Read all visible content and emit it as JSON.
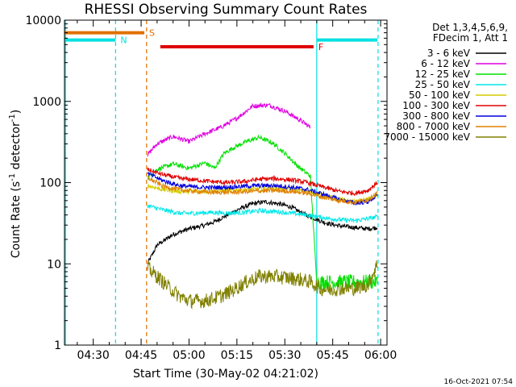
{
  "chart_data": {
    "type": "line",
    "title": "RHESSI Observing Summary Count Rates",
    "xlabel": "Start Time (30-May-02 04:21:02)",
    "ylabel_main": "Count Rate (s",
    "ylabel_sup1": "-1",
    "ylabel_mid": " detector",
    "ylabel_sup2": "-1",
    "ylabel_end": ")",
    "timestamp": "16-Oct-2021 07:54",
    "y_scale": "log",
    "ylim": [
      1,
      10000
    ],
    "xlim_minutes": [
      261,
      362
    ],
    "y_ticks": [
      {
        "value": 1,
        "label": "1"
      },
      {
        "value": 10,
        "label": "10"
      },
      {
        "value": 100,
        "label": "100"
      },
      {
        "value": 1000,
        "label": "1000"
      },
      {
        "value": 10000,
        "label": "10000"
      }
    ],
    "x_ticks": [
      {
        "minute": 270,
        "label": "04:30"
      },
      {
        "minute": 285,
        "label": "04:45"
      },
      {
        "minute": 300,
        "label": "05:00"
      },
      {
        "minute": 315,
        "label": "05:15"
      },
      {
        "minute": 330,
        "label": "05:30"
      },
      {
        "minute": 345,
        "label": "05:45"
      },
      {
        "minute": 360,
        "label": "06:00"
      }
    ],
    "legend_header": [
      "Det 1,3,4,5,6,9,",
      "FDecim 1, Att 1"
    ],
    "legend_placement": "right",
    "data_start_minute": 287,
    "data_end_minute": 359,
    "series": [
      {
        "name": "3 - 6 keV",
        "color": "#000000",
        "x": [
          287,
          290,
          295,
          300,
          305,
          308,
          312,
          316,
          320,
          324,
          328,
          332,
          335,
          338,
          341,
          344,
          348,
          352,
          356,
          359
        ],
        "y": [
          10,
          17,
          23,
          27,
          30,
          33,
          40,
          48,
          55,
          58,
          55,
          50,
          43,
          38,
          34,
          31,
          29,
          28,
          27,
          28
        ]
      },
      {
        "name": "6 - 12 keV",
        "color": "#e000e0",
        "x": [
          287,
          290,
          295,
          300,
          305,
          310,
          315,
          320,
          325,
          330,
          335,
          338
        ],
        "y": [
          220,
          300,
          370,
          320,
          400,
          480,
          620,
          880,
          900,
          760,
          580,
          480
        ]
      },
      {
        "name": "12 - 25 keV",
        "color": "#00e000",
        "x": [
          287,
          290,
          295,
          300,
          305,
          308,
          311,
          314,
          318,
          322,
          326,
          330,
          334,
          338,
          340,
          344,
          348,
          352,
          356,
          359
        ],
        "y": [
          115,
          145,
          170,
          150,
          175,
          150,
          230,
          270,
          320,
          360,
          310,
          230,
          160,
          120,
          6,
          6,
          6,
          6,
          6,
          6
        ]
      },
      {
        "name": "25 - 50 keV",
        "color": "#00e8e8",
        "x": [
          287,
          292,
          297,
          302,
          307,
          312,
          317,
          322,
          327,
          332,
          337,
          342,
          347,
          352,
          356,
          359
        ],
        "y": [
          52,
          46,
          42,
          42,
          43,
          42,
          43,
          45,
          44,
          42,
          40,
          37,
          35,
          34,
          36,
          38
        ]
      },
      {
        "name": "50 - 100 keV",
        "color": "#d4cc00",
        "x": [
          287,
          292,
          297,
          302,
          307,
          312,
          317,
          322,
          327,
          332,
          337,
          342,
          347,
          352,
          356,
          359
        ],
        "y": [
          92,
          82,
          78,
          78,
          79,
          80,
          82,
          84,
          85,
          83,
          78,
          70,
          62,
          58,
          62,
          70
        ]
      },
      {
        "name": "100 - 300 keV",
        "color": "#e00000",
        "x": [
          287,
          292,
          297,
          302,
          307,
          312,
          317,
          322,
          327,
          332,
          337,
          342,
          347,
          352,
          356,
          359
        ],
        "y": [
          145,
          125,
          113,
          108,
          103,
          100,
          103,
          110,
          112,
          108,
          100,
          88,
          78,
          74,
          80,
          100
        ]
      },
      {
        "name": "300 - 800 keV",
        "color": "#0000e0",
        "x": [
          287,
          292,
          297,
          302,
          307,
          312,
          317,
          322,
          327,
          332,
          337,
          342,
          347,
          352,
          356,
          359
        ],
        "y": [
          130,
          105,
          92,
          88,
          87,
          88,
          90,
          92,
          92,
          88,
          82,
          72,
          62,
          56,
          58,
          70
        ]
      },
      {
        "name": "800 - 7000 keV",
        "color": "#e08000",
        "x": [
          287,
          292,
          297,
          302,
          307,
          312,
          317,
          322,
          327,
          332,
          337,
          342,
          347,
          352,
          356,
          359
        ],
        "y": [
          115,
          90,
          82,
          78,
          76,
          76,
          77,
          79,
          80,
          78,
          74,
          66,
          60,
          57,
          62,
          75
        ]
      },
      {
        "name": "7000 - 15000 keV",
        "color": "#808000",
        "x": [
          287,
          290,
          294,
          297,
          300,
          305,
          310,
          314,
          318,
          322,
          326,
          330,
          334,
          338,
          341,
          344,
          348,
          352,
          356,
          359
        ],
        "y": [
          9,
          7,
          5,
          4,
          3.5,
          3.5,
          4,
          4.8,
          6,
          7,
          7,
          6.8,
          6.5,
          6,
          5,
          4.8,
          5,
          5,
          5.5,
          10
        ]
      }
    ],
    "flags": [
      {
        "label": "S",
        "color": "#e07000",
        "x_start": 261,
        "x_end": 286,
        "y": 7000
      },
      {
        "label": "N",
        "color": "#00e0e0",
        "x_start": 261,
        "x_end": 277,
        "y": 5700
      },
      {
        "label": "F",
        "color": "#e00000",
        "x_start": 291,
        "x_end": 339,
        "y": 4700
      },
      {
        "label": "",
        "color": "#00e0e0",
        "x_start": 340,
        "x_end": 359,
        "y": 5700
      }
    ],
    "markers": [
      {
        "minute": 261.3,
        "color": "#00e0e0",
        "style": "solid"
      },
      {
        "minute": 277,
        "color": "#00e0e0",
        "style": "dashed"
      },
      {
        "minute": 286.7,
        "color": "#e07000",
        "style": "dashed"
      },
      {
        "minute": 340,
        "color": "#00e0e0",
        "style": "solid"
      },
      {
        "minute": 359.2,
        "color": "#00e0e0",
        "style": "dashed"
      }
    ]
  }
}
